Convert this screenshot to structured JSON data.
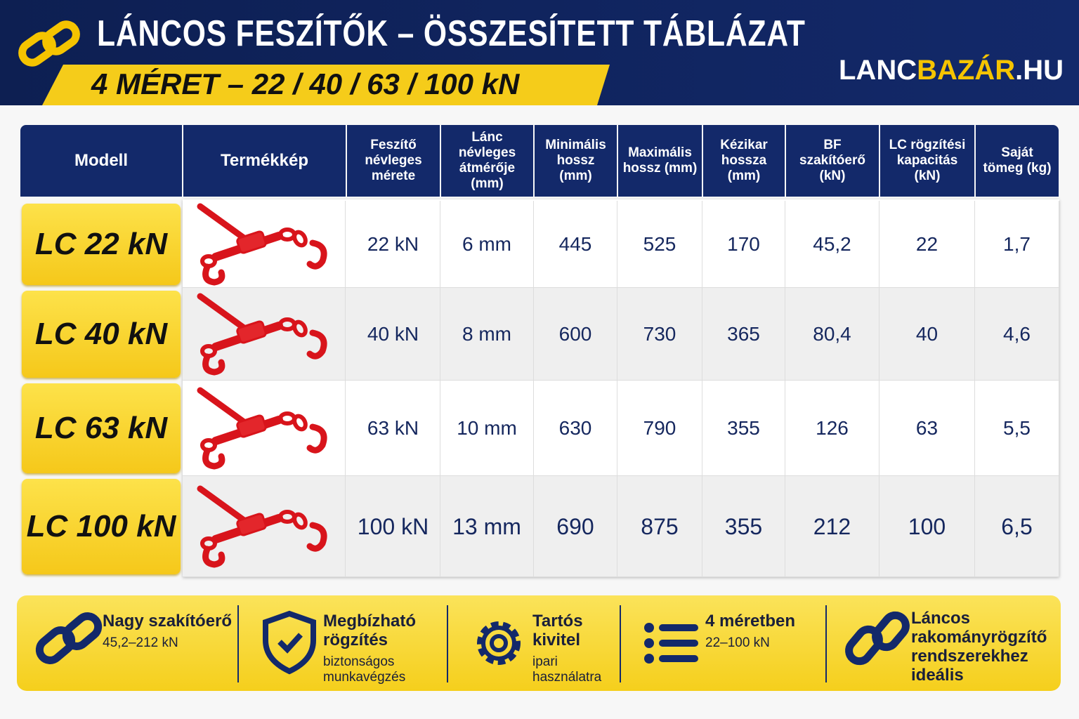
{
  "header": {
    "title": "LÁNCOS FESZÍTŐK – ÖSSZESÍTETT TÁBLÁZAT",
    "subtitle": "4 MÉRET – 22 / 40 / 63 / 100 kN",
    "brand": [
      "LANC",
      "BAZÁR",
      ".HU"
    ]
  },
  "table": {
    "columns": [
      "Modell",
      "Termékkép",
      "Feszítő névleges mérete",
      "Lánc névleges átmérője (mm)",
      "Minimális hossz (mm)",
      "Maximális hossz (mm)",
      "Kézikar hossza (mm)",
      "BF szakítóerő (kN)",
      "LC rögzítési kapacitás (kN)",
      "Saját tömeg (kg)"
    ],
    "rows": [
      [
        "LC 22 kN",
        "22 kN",
        "6 mm",
        "445",
        "525",
        "170",
        "45,2",
        "22",
        "1,7"
      ],
      [
        "LC 40 kN",
        "40 kN",
        "8 mm",
        "600",
        "730",
        "365",
        "80,4",
        "40",
        "4,6"
      ],
      [
        "LC 63 kN",
        "63 kN",
        "10 mm",
        "630",
        "790",
        "355",
        "126",
        "63",
        "5,5"
      ],
      [
        "LC 100 kN",
        "100 kN",
        "13 mm",
        "690",
        "875",
        "355",
        "212",
        "100",
        "6,5"
      ]
    ]
  },
  "features": [
    {
      "title": "Nagy szakítóerő",
      "subtitle": "45,2–212 kN"
    },
    {
      "title": "Megbízható rögzítés",
      "subtitle": "biztonságos munkavégzés"
    },
    {
      "title": "Tartós kivitel",
      "subtitle": "ipari használatra"
    },
    {
      "title": "4 méretben",
      "subtitle": "22–100 kN"
    },
    {
      "title": "Láncos rakományrögzítő rendszerekhez ideális"
    }
  ]
}
